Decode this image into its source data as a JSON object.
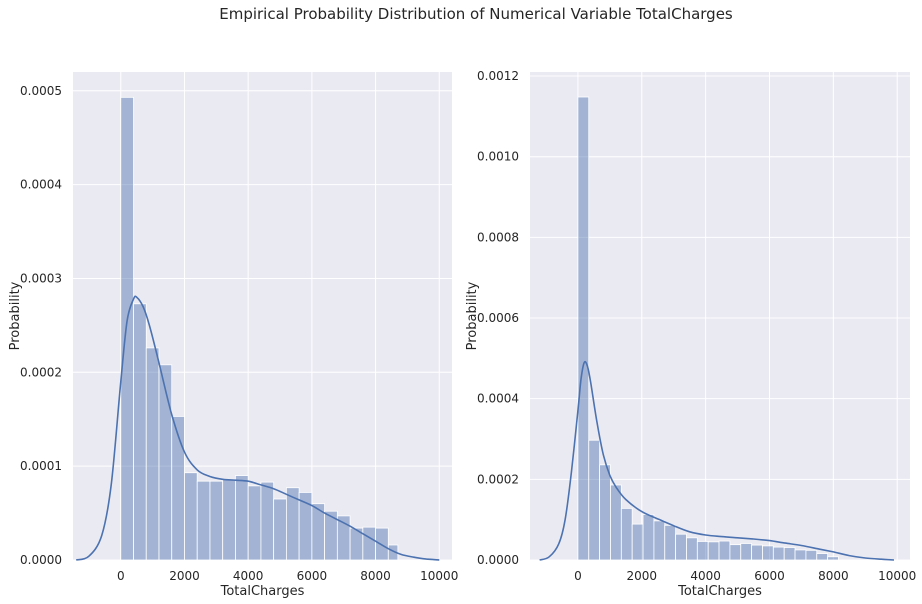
{
  "title": "Empirical Probability Distribution of Numerical Variable TotalCharges",
  "colors": {
    "background": "#eaeaf2",
    "grid": "#ffffff",
    "bar_fill": "#4c72b0",
    "bar_alpha": 0.45,
    "kde_line": "#4c72b0"
  },
  "chart_data": [
    {
      "type": "bar",
      "subtype": "histogram_with_kde",
      "xlabel": "TotalCharges",
      "ylabel": "Probability",
      "xlim": [
        -1500,
        10400
      ],
      "ylim": [
        0,
        0.00052
      ],
      "xticks": [
        0,
        2000,
        4000,
        6000,
        8000,
        10000
      ],
      "yticks": [
        0.0,
        0.0001,
        0.0002,
        0.0003,
        0.0004,
        0.0005
      ],
      "ytick_labels": [
        "0.0000",
        "0.0001",
        "0.0002",
        "0.0003",
        "0.0004",
        "0.0005"
      ],
      "grid": true,
      "bins": [
        {
          "x0": 0,
          "x1": 400,
          "value": 0.000493
        },
        {
          "x0": 400,
          "x1": 800,
          "value": 0.000273
        },
        {
          "x0": 800,
          "x1": 1200,
          "value": 0.000226
        },
        {
          "x0": 1200,
          "x1": 1600,
          "value": 0.000208
        },
        {
          "x0": 1600,
          "x1": 2000,
          "value": 0.000153
        },
        {
          "x0": 2000,
          "x1": 2400,
          "value": 9.3e-05
        },
        {
          "x0": 2400,
          "x1": 2800,
          "value": 8.4e-05
        },
        {
          "x0": 2800,
          "x1": 3200,
          "value": 8.4e-05
        },
        {
          "x0": 3200,
          "x1": 3600,
          "value": 8.6e-05
        },
        {
          "x0": 3600,
          "x1": 4000,
          "value": 9e-05
        },
        {
          "x0": 4000,
          "x1": 4400,
          "value": 7.9e-05
        },
        {
          "x0": 4400,
          "x1": 4800,
          "value": 8.3e-05
        },
        {
          "x0": 4800,
          "x1": 5200,
          "value": 6.5e-05
        },
        {
          "x0": 5200,
          "x1": 5600,
          "value": 7.7e-05
        },
        {
          "x0": 5600,
          "x1": 6000,
          "value": 7.2e-05
        },
        {
          "x0": 6000,
          "x1": 6400,
          "value": 6e-05
        },
        {
          "x0": 6400,
          "x1": 6800,
          "value": 5.2e-05
        },
        {
          "x0": 6800,
          "x1": 7200,
          "value": 4.7e-05
        },
        {
          "x0": 7200,
          "x1": 7600,
          "value": 3.4e-05
        },
        {
          "x0": 7600,
          "x1": 8000,
          "value": 3.5e-05
        },
        {
          "x0": 8000,
          "x1": 8400,
          "value": 3.4e-05
        },
        {
          "x0": 8400,
          "x1": 8700,
          "value": 1.6e-05
        }
      ],
      "kde": {
        "x": [
          -1400,
          -1000,
          -600,
          -300,
          0,
          200,
          400,
          500,
          700,
          900,
          1200,
          1600,
          2000,
          2400,
          2800,
          3200,
          3600,
          4000,
          4400,
          4800,
          5200,
          5600,
          6000,
          6400,
          6800,
          7200,
          7600,
          8000,
          8400,
          8800,
          9200,
          9600,
          10000
        ],
        "y": [
          0.0,
          4e-06,
          2.6e-05,
          8e-05,
          0.00019,
          0.000255,
          0.000278,
          0.00028,
          0.00027,
          0.00025,
          0.00021,
          0.000155,
          0.000115,
          9.6e-05,
          8.9e-05,
          8.6e-05,
          8.5e-05,
          8.4e-05,
          8e-05,
          7.6e-05,
          7e-05,
          6.4e-05,
          5.8e-05,
          5e-05,
          4.3e-05,
          3.6e-05,
          2.8e-05,
          2e-05,
          1.2e-05,
          6e-06,
          3e-06,
          1e-06,
          0.0
        ]
      }
    },
    {
      "type": "bar",
      "subtype": "histogram_with_kde",
      "xlabel": "TotalCharges",
      "ylabel": "Probability",
      "xlim": [
        -1500,
        10400
      ],
      "ylim": [
        0,
        0.00121
      ],
      "xticks": [
        0,
        2000,
        4000,
        6000,
        8000,
        10000
      ],
      "yticks": [
        0.0,
        0.0002,
        0.0004,
        0.0006,
        0.0008,
        0.001,
        0.0012
      ],
      "ytick_labels": [
        "0.0000",
        "0.0002",
        "0.0004",
        "0.0006",
        "0.0008",
        "0.0010",
        "0.0012"
      ],
      "grid": true,
      "bins": [
        {
          "x0": 0,
          "x1": 340,
          "value": 0.001148
        },
        {
          "x0": 340,
          "x1": 680,
          "value": 0.000297
        },
        {
          "x0": 680,
          "x1": 1020,
          "value": 0.000236
        },
        {
          "x0": 1020,
          "x1": 1360,
          "value": 0.000186
        },
        {
          "x0": 1360,
          "x1": 1700,
          "value": 0.000128
        },
        {
          "x0": 1700,
          "x1": 2040,
          "value": 8.9e-05
        },
        {
          "x0": 2040,
          "x1": 2380,
          "value": 0.000113
        },
        {
          "x0": 2380,
          "x1": 2720,
          "value": 9.7e-05
        },
        {
          "x0": 2720,
          "x1": 3060,
          "value": 8.6e-05
        },
        {
          "x0": 3060,
          "x1": 3400,
          "value": 6.4e-05
        },
        {
          "x0": 3400,
          "x1": 3740,
          "value": 5.5e-05
        },
        {
          "x0": 3740,
          "x1": 4080,
          "value": 4.6e-05
        },
        {
          "x0": 4080,
          "x1": 4420,
          "value": 4.5e-05
        },
        {
          "x0": 4420,
          "x1": 4760,
          "value": 4.7e-05
        },
        {
          "x0": 4760,
          "x1": 5100,
          "value": 3.8e-05
        },
        {
          "x0": 5100,
          "x1": 5440,
          "value": 4.1e-05
        },
        {
          "x0": 5440,
          "x1": 5780,
          "value": 3.7e-05
        },
        {
          "x0": 5780,
          "x1": 6120,
          "value": 3.5e-05
        },
        {
          "x0": 6120,
          "x1": 6460,
          "value": 3.2e-05
        },
        {
          "x0": 6460,
          "x1": 6800,
          "value": 3.1e-05
        },
        {
          "x0": 6800,
          "x1": 7140,
          "value": 2.5e-05
        },
        {
          "x0": 7140,
          "x1": 7480,
          "value": 2.4e-05
        },
        {
          "x0": 7480,
          "x1": 7820,
          "value": 1.6e-05
        },
        {
          "x0": 7820,
          "x1": 8160,
          "value": 8e-06
        }
      ],
      "kde": {
        "x": [
          -1200,
          -900,
          -600,
          -400,
          -200,
          0,
          100,
          200,
          300,
          400,
          600,
          800,
          1000,
          1200,
          1500,
          2000,
          2500,
          3000,
          3500,
          4000,
          4500,
          5000,
          5500,
          6000,
          6500,
          7000,
          7500,
          8000,
          8500,
          9000,
          9500,
          9900
        ],
        "y": [
          0.0,
          8e-06,
          4e-05,
          0.0001,
          0.00022,
          0.00037,
          0.00045,
          0.00049,
          0.00048,
          0.00044,
          0.00034,
          0.00026,
          0.00021,
          0.00018,
          0.00015,
          0.00012,
          0.000102,
          8.5e-05,
          7e-05,
          6.2e-05,
          5.8e-05,
          5.5e-05,
          5.2e-05,
          4.8e-05,
          4.2e-05,
          3.6e-05,
          2.8e-05,
          2e-05,
          1.1e-05,
          5e-06,
          2e-06,
          0.0
        ]
      }
    }
  ]
}
